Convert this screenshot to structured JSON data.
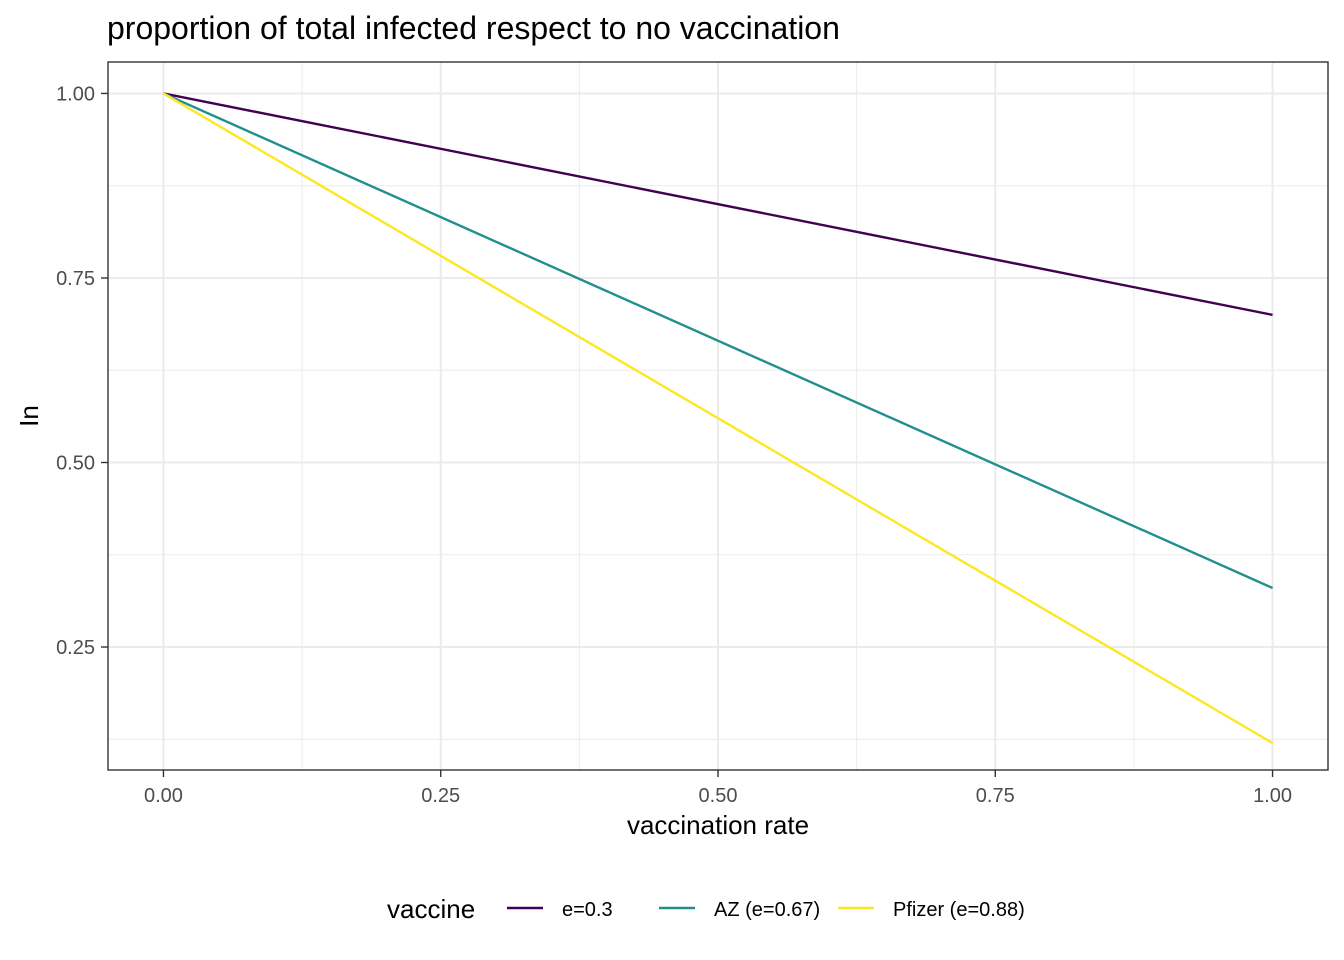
{
  "chart_data": {
    "type": "line",
    "title": "proportion of total infected respect to no vaccination",
    "xlabel": "vaccination rate",
    "ylabel": "In",
    "x": [
      0,
      1
    ],
    "xlim": [
      -0.05,
      1.05
    ],
    "ylim": [
      0.0834,
      1.0426
    ],
    "xticks": [
      0,
      0.25,
      0.5,
      0.75,
      1
    ],
    "xtick_labels": [
      "0.00",
      "0.25",
      "0.50",
      "0.75",
      "1.00"
    ],
    "yticks": [
      0.25,
      0.5,
      0.75,
      1
    ],
    "ytick_labels": [
      "0.25",
      "0.50",
      "0.75",
      "1.00"
    ],
    "grid": true,
    "legend": {
      "title": "vaccine",
      "position": "bottom"
    },
    "series": [
      {
        "name": "e=0.3",
        "values": [
          1,
          0.7
        ],
        "color": "#440154"
      },
      {
        "name": "AZ (e=0.67)",
        "values": [
          1,
          0.33
        ],
        "color": "#21908C"
      },
      {
        "name": "Pfizer (e=0.88)",
        "values": [
          1,
          0.12
        ],
        "color": "#FDE725"
      }
    ]
  }
}
